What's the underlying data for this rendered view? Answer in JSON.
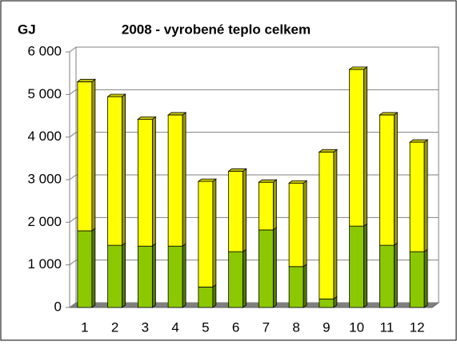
{
  "chart_data": {
    "type": "bar",
    "stacked": true,
    "three_d": true,
    "title": "2008 - vyrobené teplo celkem",
    "y_label": "GJ",
    "categories": [
      "1",
      "2",
      "3",
      "4",
      "5",
      "6",
      "7",
      "8",
      "9",
      "10",
      "11",
      "12"
    ],
    "series": [
      {
        "color": "#8cc800",
        "values": [
          1800,
          1460,
          1440,
          1440,
          480,
          1310,
          1820,
          960,
          200,
          1910,
          1460,
          1310
        ]
      },
      {
        "color": "#ffff00",
        "values": [
          3500,
          3490,
          2980,
          3080,
          2480,
          1890,
          1120,
          1960,
          3450,
          3680,
          3060,
          2570
        ]
      }
    ],
    "ylim": [
      0,
      6000
    ],
    "yticks": [
      0,
      {
        "value": 1000,
        "label": "1 000"
      },
      {
        "value": 2000,
        "label": "2 000"
      },
      {
        "value": 3000,
        "label": "3 000"
      },
      {
        "value": 4000,
        "label": "4 000"
      },
      {
        "value": 5000,
        "label": "5 000"
      },
      {
        "value": 6000,
        "label": "6 000"
      }
    ],
    "grid": true
  }
}
